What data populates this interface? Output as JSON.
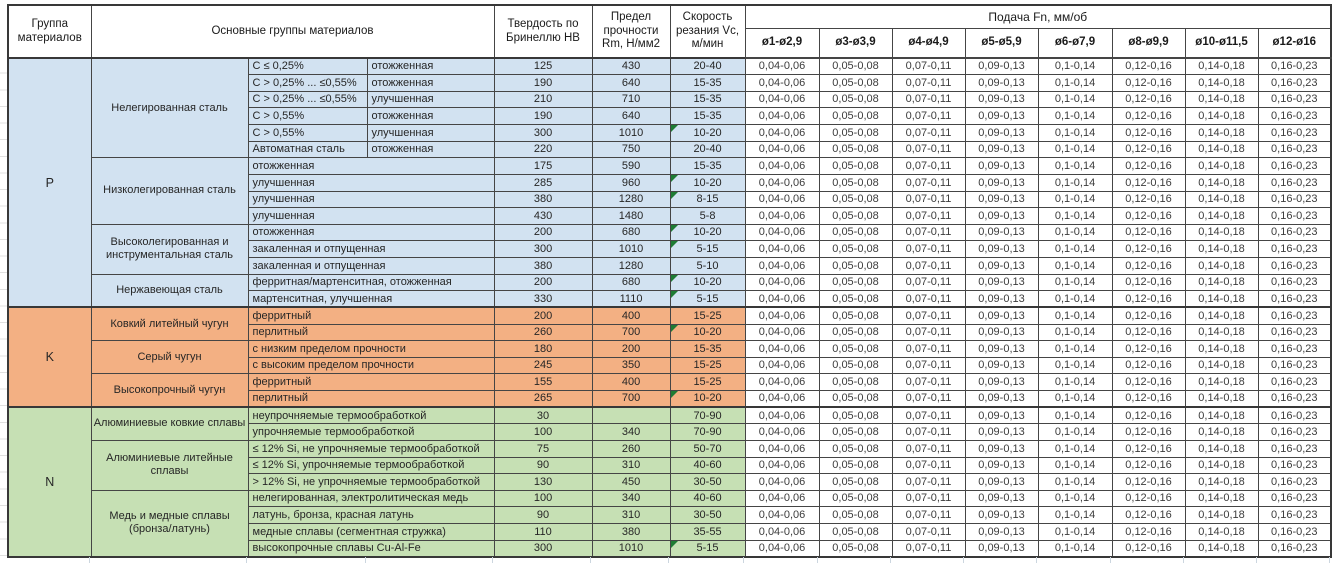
{
  "table": {
    "columns": {
      "group_letter": "Группа\nматериалов",
      "main_groups": "Основные группы материалов",
      "hardness": "Твердость по Бринеллю HB",
      "strength": "Предел прочности Rm, Н/мм2",
      "speed": "Скорость резания Vc, м/мин",
      "feed_title": "Подача Fn, мм/об"
    },
    "feed_columns": [
      "ø1-ø2,9",
      "ø3-ø3,9",
      "ø4-ø4,9",
      "ø5-ø5,9",
      "ø6-ø7,9",
      "ø8-ø9,9",
      "ø10-ø11,5",
      "ø12-ø16"
    ],
    "feed_values": [
      "0,04-0,06",
      "0,05-0,08",
      "0,07-0,11",
      "0,09-0,13",
      "0,1-0,14",
      "0,12-0,16",
      "0,14-0,18",
      "0,16-0,23"
    ],
    "marker_color": "#1E7B34",
    "sections": [
      {
        "letter": "P",
        "color": "#D2E2F1",
        "groups": [
          {
            "name": "Нелегированная сталь",
            "rows": [
              {
                "cells": [
                  "C ≤ 0,25%",
                  "отожженная"
                ],
                "hb": "125",
                "rm": "430",
                "vc": "20-40",
                "marker": false
              },
              {
                "cells": [
                  "C > 0,25% ... ≤0,55%",
                  "отожженная"
                ],
                "hb": "190",
                "rm": "640",
                "vc": "15-35",
                "marker": false
              },
              {
                "cells": [
                  "C > 0,25% ... ≤0,55%",
                  "улучшенная"
                ],
                "hb": "210",
                "rm": "710",
                "vc": "15-35",
                "marker": false
              },
              {
                "cells": [
                  "C > 0,55%",
                  "отожженная"
                ],
                "hb": "190",
                "rm": "640",
                "vc": "15-35",
                "marker": false
              },
              {
                "cells": [
                  "C > 0,55%",
                  "улучшенная"
                ],
                "hb": "300",
                "rm": "1010",
                "vc": "10-20",
                "marker": true
              },
              {
                "cells": [
                  "Автоматная сталь",
                  "отожженная"
                ],
                "hb": "220",
                "rm": "750",
                "vc": "20-40",
                "marker": false
              }
            ]
          },
          {
            "name": "Низколегированная сталь",
            "rows": [
              {
                "cells": [
                  "отожженная"
                ],
                "hb": "175",
                "rm": "590",
                "vc": "15-35",
                "marker": false
              },
              {
                "cells": [
                  "улучшенная"
                ],
                "hb": "285",
                "rm": "960",
                "vc": "10-20",
                "marker": true
              },
              {
                "cells": [
                  "улучшенная"
                ],
                "hb": "380",
                "rm": "1280",
                "vc": "8-15",
                "marker": true
              },
              {
                "cells": [
                  "улучшенная"
                ],
                "hb": "430",
                "rm": "1480",
                "vc": "5-8",
                "marker": false
              }
            ]
          },
          {
            "name": "Высоколегированная и инструментальная сталь",
            "rows": [
              {
                "cells": [
                  "отожженная"
                ],
                "hb": "200",
                "rm": "680",
                "vc": "10-20",
                "marker": true
              },
              {
                "cells": [
                  "закаленная и отпущенная"
                ],
                "hb": "300",
                "rm": "1010",
                "vc": "5-15",
                "marker": true
              },
              {
                "cells": [
                  "закаленная и отпущенная"
                ],
                "hb": "380",
                "rm": "1280",
                "vc": "5-10",
                "marker": false
              }
            ]
          },
          {
            "name": "Нержавеющая сталь",
            "rows": [
              {
                "cells": [
                  "ферритная/мартенситная, отожженная"
                ],
                "hb": "200",
                "rm": "680",
                "vc": "10-20",
                "marker": true
              },
              {
                "cells": [
                  "мартенситная, улучшенная"
                ],
                "hb": "330",
                "rm": "1110",
                "vc": "5-15",
                "marker": true
              }
            ]
          }
        ]
      },
      {
        "letter": "K",
        "color": "#F3B083",
        "groups": [
          {
            "name": "Ковкий литейный чугун",
            "rows": [
              {
                "cells": [
                  "ферритный"
                ],
                "hb": "200",
                "rm": "400",
                "vc": "15-25",
                "marker": false
              },
              {
                "cells": [
                  "перлитный"
                ],
                "hb": "260",
                "rm": "700",
                "vc": "10-20",
                "marker": true
              }
            ]
          },
          {
            "name": "Серый чугун",
            "rows": [
              {
                "cells": [
                  "с низким пределом прочности"
                ],
                "hb": "180",
                "rm": "200",
                "vc": "15-35",
                "marker": false
              },
              {
                "cells": [
                  "с высоким пределом прочности"
                ],
                "hb": "245",
                "rm": "350",
                "vc": "15-25",
                "marker": false
              }
            ]
          },
          {
            "name": "Высокопрочный чугун",
            "rows": [
              {
                "cells": [
                  "ферритный"
                ],
                "hb": "155",
                "rm": "400",
                "vc": "15-25",
                "marker": false
              },
              {
                "cells": [
                  "перлитный"
                ],
                "hb": "265",
                "rm": "700",
                "vc": "10-20",
                "marker": true
              }
            ]
          }
        ]
      },
      {
        "letter": "N",
        "color": "#C6E0B4",
        "groups": [
          {
            "name": "Алюминиевые ковкие сплавы",
            "rows": [
              {
                "cells": [
                  "неупрочняемые термообработкой"
                ],
                "hb": "30",
                "rm": "",
                "vc": "70-90",
                "marker": false
              },
              {
                "cells": [
                  "упрочняемые термообработкой"
                ],
                "hb": "100",
                "rm": "340",
                "vc": "70-90",
                "marker": false
              }
            ]
          },
          {
            "name": "Алюминиевые литейные сплавы",
            "rows": [
              {
                "cells": [
                  "≤ 12% Si, не упрочняемые термообработкой"
                ],
                "hb": "75",
                "rm": "260",
                "vc": "50-70",
                "marker": false
              },
              {
                "cells": [
                  "≤ 12% Si, упрочняемые термообработкой"
                ],
                "hb": "90",
                "rm": "310",
                "vc": "40-60",
                "marker": false
              },
              {
                "cells": [
                  "> 12% Si, не упрочняемые термообработкой"
                ],
                "hb": "130",
                "rm": "450",
                "vc": "30-50",
                "marker": false
              }
            ]
          },
          {
            "name": "Медь и медные сплавы (бронза/латунь)",
            "rows": [
              {
                "cells": [
                  "нелегированная, электролитическая медь"
                ],
                "hb": "100",
                "rm": "340",
                "vc": "40-60",
                "marker": false
              },
              {
                "cells": [
                  "латунь, бронза, красная латунь"
                ],
                "hb": "90",
                "rm": "310",
                "vc": "30-50",
                "marker": false
              },
              {
                "cells": [
                  "медные сплавы (сегментная стружка)"
                ],
                "hb": "110",
                "rm": "380",
                "vc": "35-55",
                "marker": false
              },
              {
                "cells": [
                  "высокопрочные сплавы Cu-Al-Fe"
                ],
                "hb": "300",
                "rm": "1010",
                "vc": "5-15",
                "marker": true
              }
            ]
          }
        ]
      }
    ]
  }
}
